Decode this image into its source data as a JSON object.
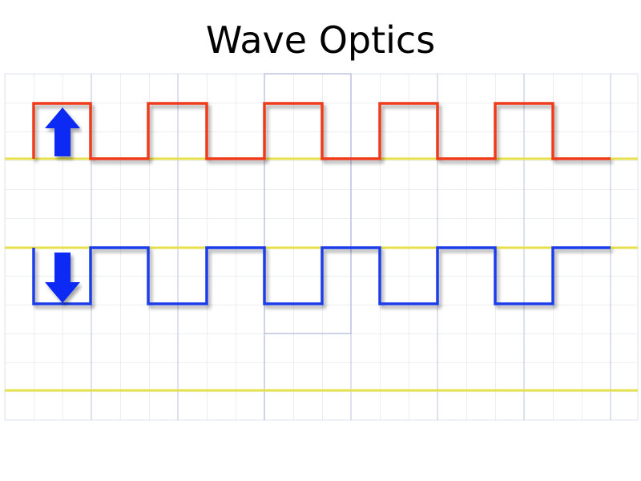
{
  "title": "Wave Optics"
}
